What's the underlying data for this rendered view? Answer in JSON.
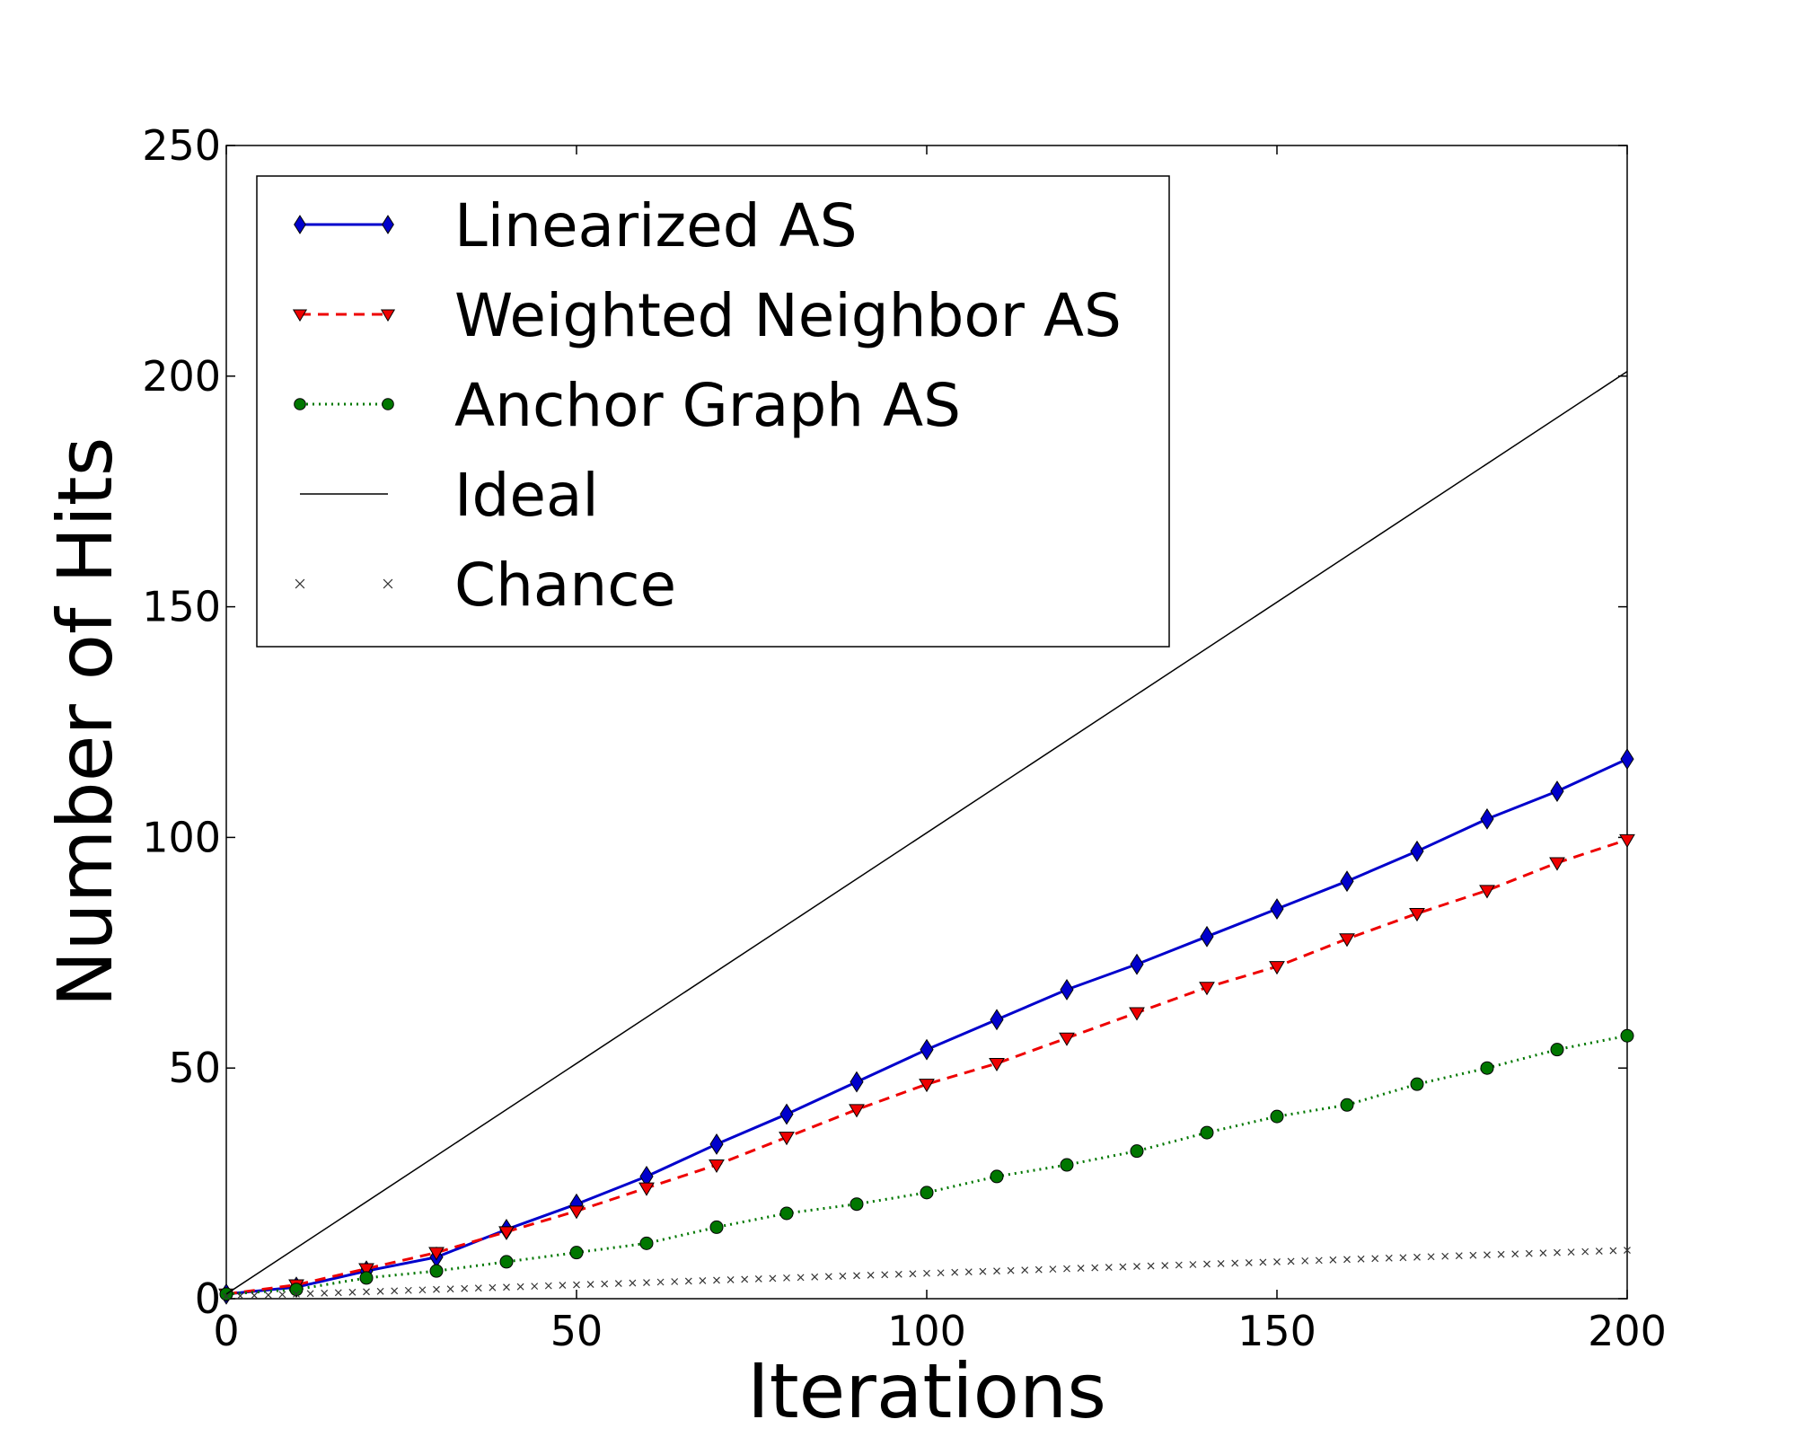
{
  "chart_data": {
    "type": "line",
    "xlabel": "Iterations",
    "ylabel": "Number of Hits",
    "xlim": [
      0,
      200
    ],
    "ylim": [
      0,
      250
    ],
    "xticks": [
      0,
      50,
      100,
      150,
      200
    ],
    "yticks": [
      0,
      50,
      100,
      150,
      200,
      250
    ],
    "grid": false,
    "legend_position": "top-left",
    "series": [
      {
        "name": "Linearized AS",
        "color": "#0000cc",
        "line": "solid",
        "marker": "diamond",
        "x": [
          0,
          10,
          20,
          30,
          40,
          50,
          60,
          70,
          80,
          90,
          100,
          110,
          120,
          130,
          140,
          150,
          160,
          170,
          180,
          190,
          200
        ],
        "y": [
          1,
          2.5,
          6,
          9,
          15,
          20.5,
          26.5,
          33.5,
          40,
          47,
          54,
          60.5,
          67,
          72.5,
          78.5,
          84.5,
          90.5,
          97,
          104,
          110,
          117
        ]
      },
      {
        "name": "Weighted Neighbor AS",
        "color": "#ee0000",
        "line": "dashed",
        "marker": "triangle-down",
        "x": [
          0,
          10,
          20,
          30,
          40,
          50,
          60,
          70,
          80,
          90,
          100,
          110,
          120,
          130,
          140,
          150,
          160,
          170,
          180,
          190,
          200
        ],
        "y": [
          1,
          3,
          6.5,
          10,
          14.5,
          19,
          24,
          29,
          35,
          41,
          46.5,
          51,
          56.5,
          62,
          67.5,
          72,
          78,
          83.5,
          88.5,
          94.5,
          99.5
        ]
      },
      {
        "name": "Anchor Graph AS",
        "color": "#007700",
        "line": "dotted",
        "marker": "circle",
        "x": [
          0,
          10,
          20,
          30,
          40,
          50,
          60,
          70,
          80,
          90,
          100,
          110,
          120,
          130,
          140,
          150,
          160,
          170,
          180,
          190,
          200
        ],
        "y": [
          1,
          2,
          4.5,
          6,
          8,
          10,
          12,
          15.5,
          18.5,
          20.5,
          23,
          26.5,
          29,
          32,
          36,
          39.5,
          42,
          46.5,
          50,
          54,
          57
        ]
      },
      {
        "name": "Ideal",
        "color": "#000000",
        "line": "solid-thin",
        "marker": "none",
        "x": [
          0,
          200
        ],
        "y": [
          1,
          201
        ]
      },
      {
        "name": "Chance",
        "color": "#333333",
        "line": "none",
        "marker": "x",
        "x_start": 0,
        "x_end": 200,
        "x_step": 2,
        "y_start": 0.5,
        "y_end": 10.5
      }
    ]
  }
}
